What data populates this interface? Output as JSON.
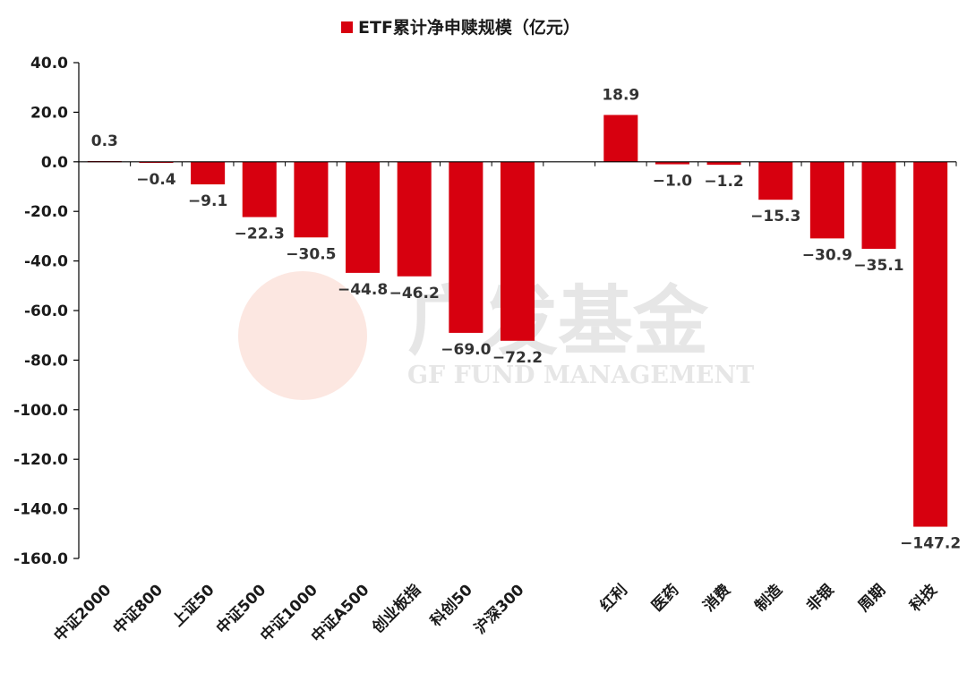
{
  "chart_data": {
    "type": "bar",
    "title": "ETF累计净申赎规模（亿元）",
    "categories": [
      "中证2000",
      "中证800",
      "上证50",
      "中证500",
      "中证1000",
      "中证A500",
      "创业板指",
      "科创50",
      "沪深300",
      "",
      "红利",
      "医药",
      "消费",
      "制造",
      "非银",
      "周期",
      "科技"
    ],
    "series": [
      {
        "name": "ETF累计净申赎规模（亿元）",
        "values": [
          0.3,
          -0.4,
          -9.1,
          -22.3,
          -30.5,
          -44.8,
          -46.2,
          -69.0,
          -72.2,
          null,
          18.9,
          -1.0,
          -1.2,
          -15.3,
          -30.9,
          -35.1,
          -147.2
        ],
        "labels": [
          "0.3",
          "−0.4",
          "−9.1",
          "−22.3",
          "−30.5",
          "−44.8",
          "−46.2",
          "−69.0",
          "−72.2",
          "",
          "18.9",
          "−1.0",
          "−1.2",
          "−15.3",
          "−30.9",
          "−35.1",
          "−147.2"
        ],
        "color": "#d7000f"
      }
    ],
    "ylim": [
      -160,
      40
    ],
    "yticks": [
      40,
      20,
      0,
      -20,
      -40,
      -60,
      -80,
      -100,
      -120,
      -140,
      -160
    ],
    "ytick_labels": [
      "40.0",
      "20.0",
      "0.0",
      "-20.0",
      "-40.0",
      "-60.0",
      "-80.0",
      "-100.0",
      "-120.0",
      "-140.0",
      "-160.0"
    ],
    "legend_position": "top-center",
    "grid": false,
    "xlabel": "",
    "ylabel": ""
  },
  "watermark": {
    "cn": "广发基金",
    "en": "GF FUND MANAGEMENT"
  }
}
